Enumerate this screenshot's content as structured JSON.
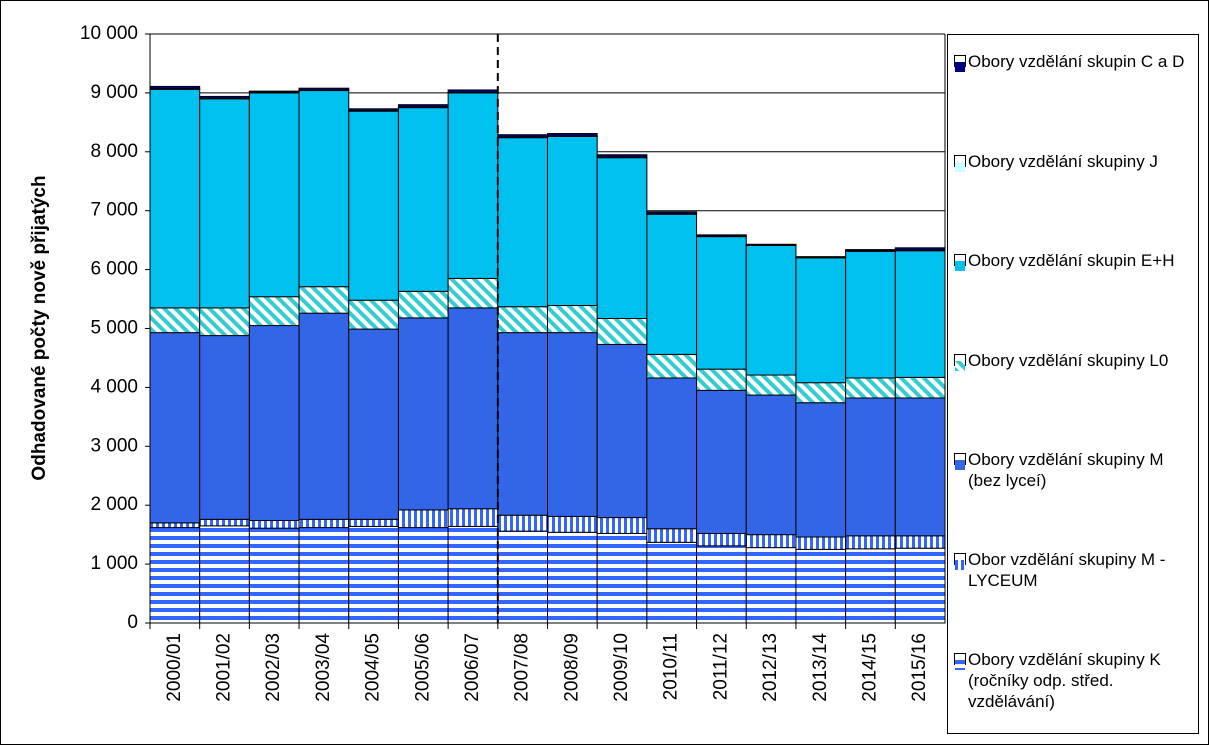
{
  "chart_data": {
    "type": "stacked_bar",
    "y_label": "Odhadované počty nově přijatých",
    "categories": [
      "2000/01",
      "2001/02",
      "2002/03",
      "2003/04",
      "2004/05",
      "2005/06",
      "2006/07",
      "2007/08",
      "2008/09",
      "2009/10",
      "2010/11",
      "2011/12",
      "2012/13",
      "2013/14",
      "2014/15",
      "2015/16"
    ],
    "series": [
      {
        "name": "Obory vzdělání skupiny K (ročníky odp. střed. vzdělávání)",
        "color": "#3366ff",
        "pattern": "horizontal",
        "values": [
          1620,
          1650,
          1610,
          1620,
          1640,
          1620,
          1640,
          1560,
          1540,
          1520,
          1370,
          1310,
          1280,
          1250,
          1260,
          1270
        ]
      },
      {
        "name": "Obor vzdělání skupiny M - LYCEUM",
        "color": "#3366ff",
        "pattern": "vertical",
        "values": [
          80,
          110,
          130,
          140,
          120,
          300,
          300,
          270,
          270,
          270,
          230,
          210,
          220,
          210,
          220,
          210
        ]
      },
      {
        "name": "Obory vzdělání skupiny M (bez lyceí)",
        "color": "#3366e6",
        "values": [
          3230,
          3120,
          3310,
          3500,
          3230,
          3260,
          3410,
          3100,
          3120,
          2940,
          2560,
          2430,
          2370,
          2280,
          2340,
          2340
        ]
      },
      {
        "name": "Obory vzdělání skupiny L0",
        "color": "#33ccd0",
        "pattern": "diagonal",
        "values": [
          420,
          470,
          490,
          450,
          490,
          450,
          500,
          440,
          460,
          440,
          400,
          360,
          340,
          340,
          340,
          350
        ]
      },
      {
        "name": "Obory vzdělání skupin E+H",
        "color": "#00c0f0",
        "values": [
          3710,
          3550,
          3460,
          3330,
          3210,
          3120,
          3150,
          2870,
          2870,
          2730,
          2380,
          2250,
          2200,
          2120,
          2150,
          2150
        ]
      },
      {
        "name": "Obory vzdělání skupiny J",
        "color": "#ccffff",
        "values": [
          10,
          10,
          10,
          10,
          10,
          10,
          10,
          10,
          10,
          10,
          10,
          10,
          10,
          10,
          10,
          10
        ]
      },
      {
        "name": "Obory vzdělání skupin C a D",
        "color": "#000080",
        "values": [
          40,
          30,
          20,
          30,
          30,
          40,
          40,
          40,
          40,
          40,
          30,
          20,
          10,
          10,
          20,
          40
        ]
      }
    ],
    "ylim": [
      0,
      10000
    ],
    "yticks": [
      0,
      {
        "value": 1000,
        "label": "1 000"
      },
      {
        "value": 2000,
        "label": "2 000"
      },
      {
        "value": 3000,
        "label": "3 000"
      },
      {
        "value": 4000,
        "label": "4 000"
      },
      {
        "value": 5000,
        "label": "5 000"
      },
      {
        "value": 6000,
        "label": "6 000"
      },
      {
        "value": 7000,
        "label": "7 000"
      },
      {
        "value": 8000,
        "label": "8 000"
      },
      {
        "value": 9000,
        "label": "9 000"
      },
      {
        "value": 10000,
        "label": "10 000"
      }
    ],
    "grid": true,
    "legend": "right"
  }
}
